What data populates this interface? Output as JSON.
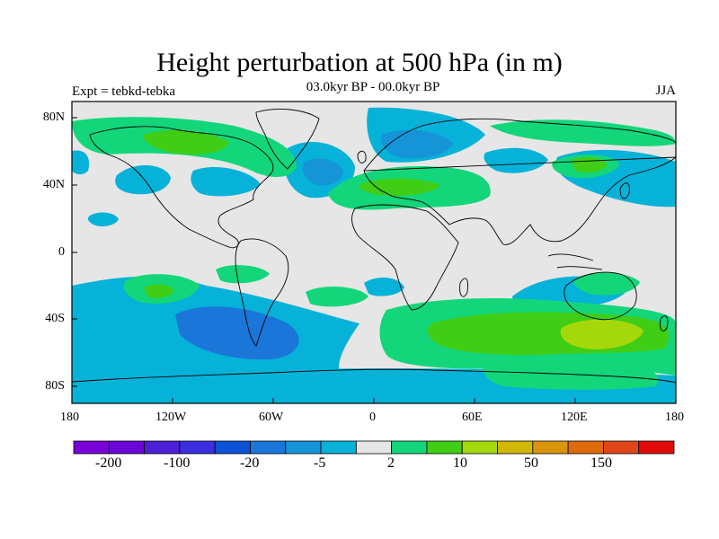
{
  "title": "Height perturbation at 500 hPa (in m)",
  "subtitle": "03.0kyr BP - 00.0kyr BP",
  "experiment": "Expt = tebkd-tebka",
  "season": "JJA",
  "x_ticks": [
    "180",
    "120W",
    "60W",
    "0",
    "60E",
    "120E",
    "180"
  ],
  "y_ticks": [
    "80N",
    "40N",
    "0",
    "40S",
    "80S"
  ],
  "colorbar": {
    "colors": [
      "#7a00d9",
      "#6a06d6",
      "#4d1fd8",
      "#3a2ee0",
      "#0b52d6",
      "#1a76d9",
      "#1594d8",
      "#06b2d8",
      "#e6e6e6",
      "#13d67a",
      "#3fcd16",
      "#a5d80a",
      "#d2b805",
      "#db950a",
      "#df6a0b",
      "#e1461a",
      "#e10a0a"
    ],
    "tick_labels": [
      "-200",
      "-100",
      "-20",
      "-5",
      "2",
      "10",
      "50",
      "150"
    ]
  }
}
